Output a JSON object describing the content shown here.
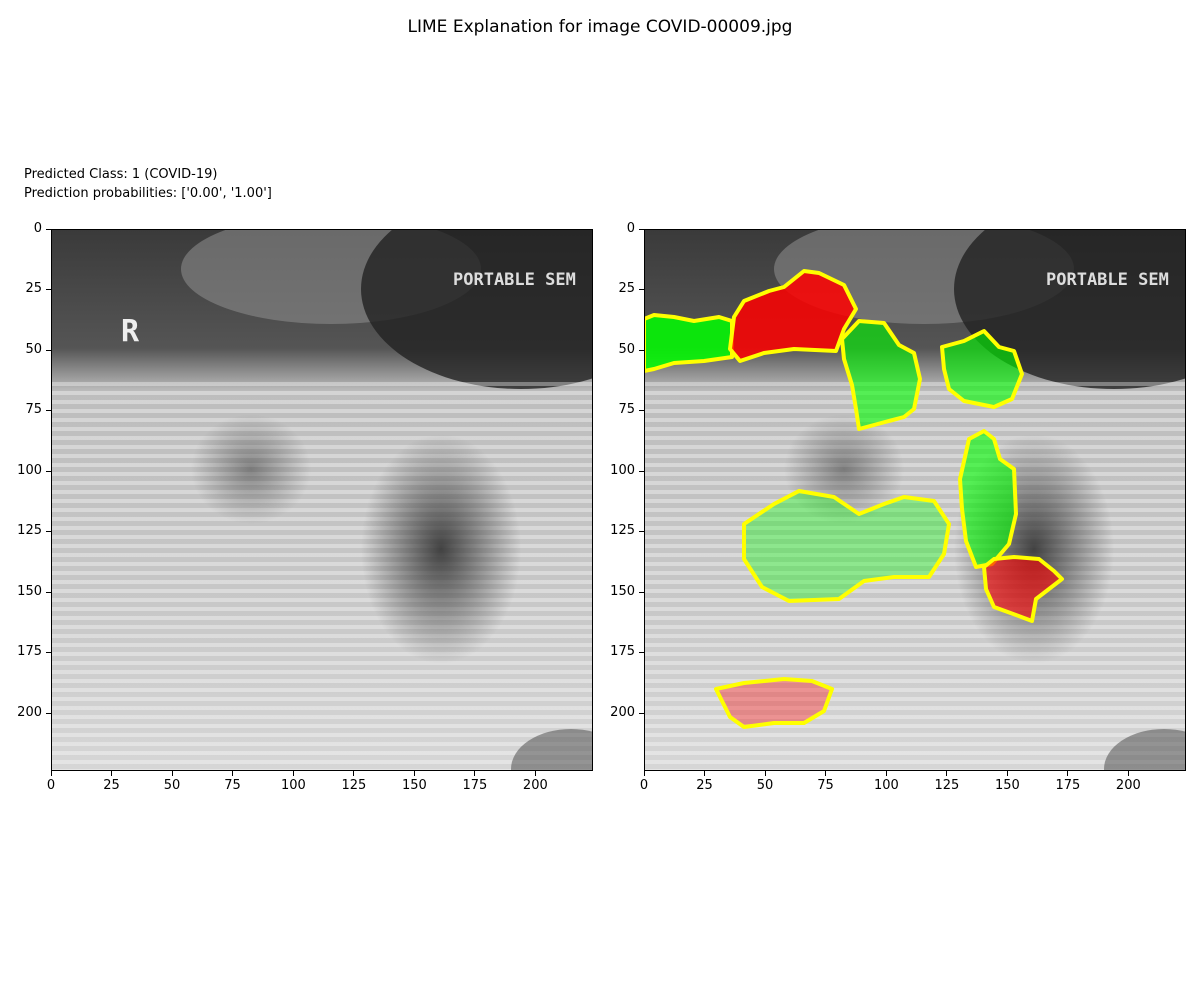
{
  "title": "LIME Explanation for image COVID-00009.jpg",
  "info": {
    "predicted_class": "Predicted Class: 1 (COVID-19)",
    "probabilities": "Prediction probabilities: ['0.00', '1.00']"
  },
  "image_text": {
    "marker": "R",
    "label": "PORTABLE SEM"
  },
  "axes": {
    "range": [
      0,
      224
    ],
    "x_ticks": [
      "0",
      "25",
      "50",
      "75",
      "100",
      "125",
      "150",
      "175",
      "200"
    ],
    "y_ticks": [
      "0",
      "25",
      "50",
      "75",
      "100",
      "125",
      "150",
      "175",
      "200"
    ]
  },
  "colors": {
    "positive": "#00ff00",
    "negative": "#ff0000",
    "boundary": "#ffff00"
  },
  "segments": [
    {
      "name": "upper-left-green",
      "sign": "positive"
    },
    {
      "name": "upper-red",
      "sign": "negative"
    },
    {
      "name": "upper-mid-green",
      "sign": "positive"
    },
    {
      "name": "upper-right-green",
      "sign": "positive"
    },
    {
      "name": "right-vertical-green",
      "sign": "positive"
    },
    {
      "name": "center-light-green",
      "sign": "positive"
    },
    {
      "name": "lower-right-red",
      "sign": "negative"
    },
    {
      "name": "bottom-light-red",
      "sign": "negative"
    }
  ]
}
